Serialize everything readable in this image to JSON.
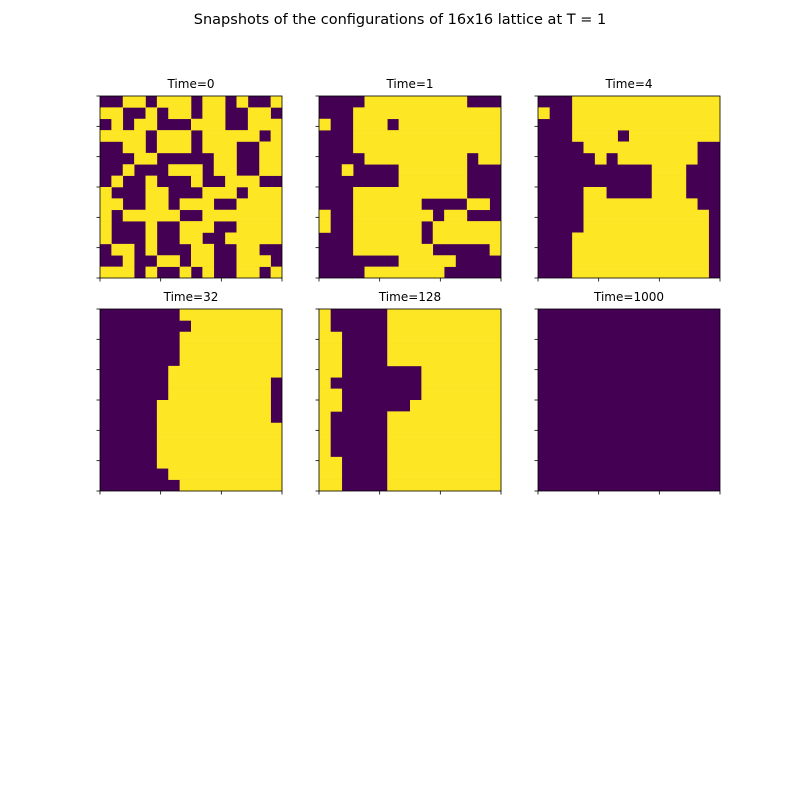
{
  "chart_data": {
    "type": "heatmap",
    "title": "Snapshots of the configurations of 16x16 lattice at T = 1",
    "colormap": {
      "-1": "#440154",
      "1": "#fde725"
    },
    "lattice_size": 16,
    "grid": false,
    "panels": [
      {
        "title": "Time=0",
        "rows": [
          "..YY.YYY.YY.Y..Y",
          "YY..Y.YY.YY..YY.",
          ".Y.YY...YYY..YYY",
          "YYYY.YYY.YYYYY.Y",
          "..YY.YYY.YYY..YY",
          "...YY.....YY..YY",
          "..Y...YYY.YY..YY",
          ".Y..Y...Y..YYY..",
          "Y...YY...YYY.YYY",
          "YY..YY.YYY..YYYY",
          "Y.YYYYY..YYYYYYY",
          "Y...Y..YYY..YYYY",
          "Y...Y..YY..YYYYY",
          ".YY.Y...YY..YY..",
          "..Y..YY.YY..YYY.",
          "YYY.Y..Y.Y..YY.Y"
        ]
      },
      {
        "title": "Time=1",
        "rows": [
          "....YYYYYYYYY...",
          "...YYYYYYYYYYYYY",
          "Y..YYY.YYYYYYYYY",
          "...YYYYYYYYYYYYY",
          "...YYYYYYYYYYYYY",
          "....YYYYYYYYY.YY",
          "..Y....YYYYYY...",
          ".......YYYYYY...",
          "...YYYYYYYYYY...",
          "...YYYYYY....YY.",
          "Y..YYYYYYY.YY...",
          "Y..YYYYYY.YYYYYY",
          "...YYYYYY.YYYYYY",
          "...YYYYYYY.....Y",
          ".......YYYYY....",
          "....YYYYYYY....."
        ]
      },
      {
        "title": "Time=4",
        "rows": [
          "...YYYYYYYYYYYYY",
          "Y..YYYYYYYYYYYYY",
          "...YYYYYYYYYYYYY",
          "...YYYY.YYYYYYYY",
          "....YYYYYYYYYY..",
          ".....Y.YYYYYYY..",
          "..........YYY...",
          "..........YYY...",
          "....YY....YYY...",
          "....YYYYYYYYYY..",
          "....YYYYYYYYYYY.",
          "....YYYYYYYYYYY.",
          "...YYYYYYYYYYYY.",
          "...YYYYYYYYYYYY.",
          "...YYYYYYYYYYYY.",
          "...YYYYYYYYYYYY."
        ]
      },
      {
        "title": "Time=32",
        "rows": [
          ".......YYYYYYYYY",
          "........YYYYYYYY",
          ".......YYYYYYYYY",
          ".......YYYYYYYYY",
          ".......YYYYYYYYY",
          "......YYYYYYYYYY",
          "......YYYYYYYYY.",
          "......YYYYYYYYY.",
          ".....YYYYYYYYYY.",
          ".....YYYYYYYYYY.",
          ".....YYYYYYYYYYY",
          ".....YYYYYYYYYYY",
          ".....YYYYYYYYYYY",
          ".....YYYYYYYYYYY",
          "......YYYYYYYYYY",
          ".......YYYYYYYYY"
        ]
      },
      {
        "title": "Time=128",
        "rows": [
          "Y.....YYYYYYYYYY",
          "Y.....YYYYYYYYYY",
          "YY....YYYYYYYYYY",
          "YY....YYYYYYYYYY",
          "YY....YYYYYYYYYY",
          "YY.......YYYYYYY",
          "Y........YYYYYYY",
          "YY.......YYYYYYY",
          "YY......YYYYYYYY",
          "Y.....YYYYYYYYYY",
          "Y.....YYYYYYYYYY",
          "Y.....YYYYYYYYYY",
          "Y.....YYYYYYYYYY",
          "YY....YYYYYYYYYY",
          "YY....YYYYYYYYYY",
          "YY....YYYYYYYYYY"
        ]
      },
      {
        "title": "Time=1000",
        "rows": [
          "................",
          "................",
          "................",
          "................",
          "................",
          "................",
          "................",
          "................",
          "................",
          "................",
          "................",
          "................",
          "................",
          "................",
          "................",
          "................"
        ]
      }
    ]
  }
}
